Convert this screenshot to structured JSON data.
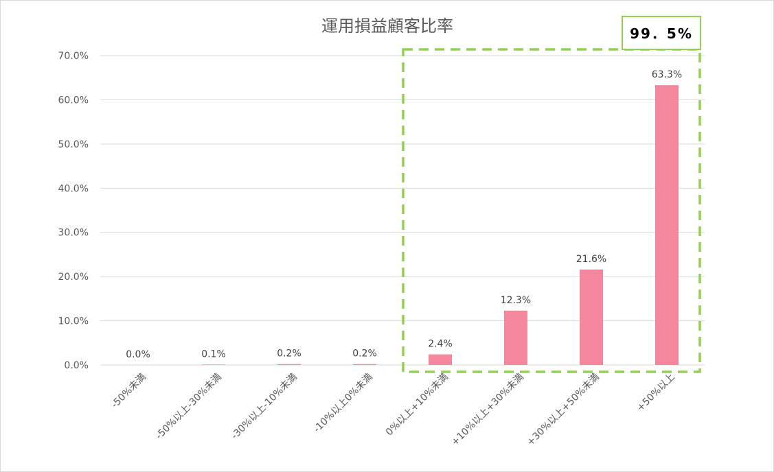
{
  "chart_data": {
    "type": "bar",
    "title": "運用損益顧客比率",
    "categories": [
      "-50%未満",
      "-50%以上-30%未満",
      "-30%以上-10%未満",
      "-10%以上0%未満",
      "0%以上+10%未満",
      "+10%以上+30%未満",
      "+30%以上+50%未満",
      "+50%以上"
    ],
    "values": [
      0.0,
      0.1,
      0.2,
      0.2,
      2.4,
      12.3,
      21.6,
      63.3
    ],
    "data_labels": [
      "0.0%",
      "0.1%",
      "0.2%",
      "0.2%",
      "2.4%",
      "12.3%",
      "21.6%",
      "63.3%"
    ],
    "ylim": [
      0,
      70
    ],
    "yticks": [
      0,
      10,
      20,
      30,
      40,
      50,
      60,
      70
    ],
    "ytick_labels": [
      "0.0%",
      "10.0%",
      "20.0%",
      "30.0%",
      "40.0%",
      "50.0%",
      "60.0%",
      "70.0%"
    ],
    "grid": true,
    "bar_color": "#f4879e",
    "highlight": {
      "categories": [
        "0%以上+10%未満",
        "+10%以上+30%未満",
        "+30%以上+50%未満",
        "+50%以上"
      ],
      "label": "99．5%",
      "color": "#92d050"
    }
  }
}
